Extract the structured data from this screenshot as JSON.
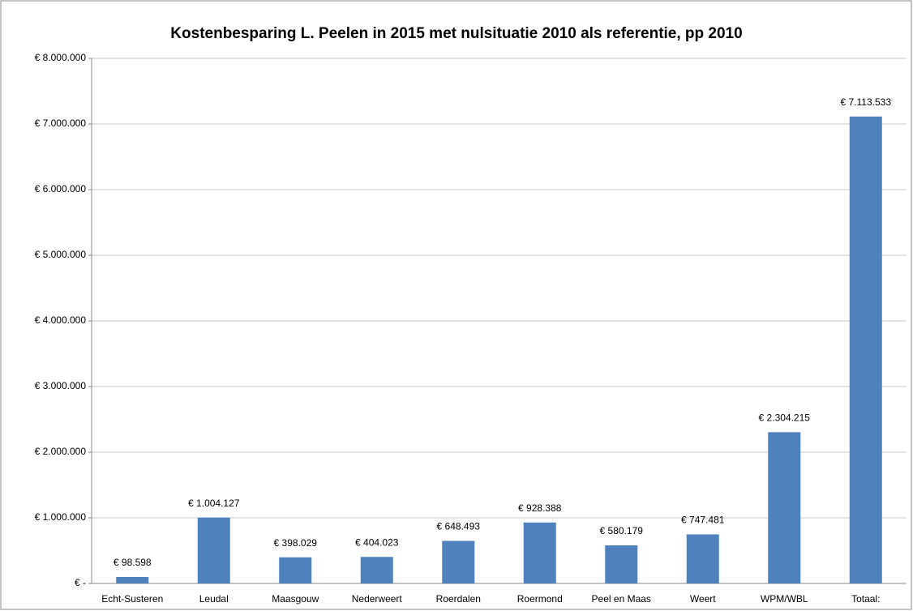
{
  "chart_data": {
    "type": "bar",
    "title": "Kostenbesparing L. Peelen in 2015 met nulsituatie 2010 als referentie, pp 2010",
    "categories": [
      "Echt-Susteren",
      "Leudal",
      "Maasgouw",
      "Nederweert",
      "Roerdalen",
      "Roermond",
      "Peel en Maas",
      "Weert",
      "WPM/WBL",
      "Totaal:"
    ],
    "values": [
      98598,
      1004127,
      398029,
      404023,
      648493,
      928388,
      580179,
      747481,
      2304215,
      7113533
    ],
    "value_labels": [
      "€ 98.598",
      "€ 1.004.127",
      "€ 398.029",
      "€ 404.023",
      "€ 648.493",
      "€ 928.388",
      "€ 580.179",
      "€ 747.481",
      "€ 2.304.215",
      "€ 7.113.533"
    ],
    "color": "#4f81bd",
    "ylim": [
      0,
      8000000
    ],
    "yticks": [
      {
        "value": 0,
        "label": "€ -"
      },
      {
        "value": 1000000,
        "label": "€ 1.000.000"
      },
      {
        "value": 2000000,
        "label": "€ 2.000.000"
      },
      {
        "value": 3000000,
        "label": "€ 3.000.000"
      },
      {
        "value": 4000000,
        "label": "€ 4.000.000"
      },
      {
        "value": 5000000,
        "label": "€ 5.000.000"
      },
      {
        "value": 6000000,
        "label": "€ 6.000.000"
      },
      {
        "value": 7000000,
        "label": "€ 7.000.000"
      },
      {
        "value": 8000000,
        "label": "€ 8.000.000"
      }
    ],
    "grid": true
  }
}
